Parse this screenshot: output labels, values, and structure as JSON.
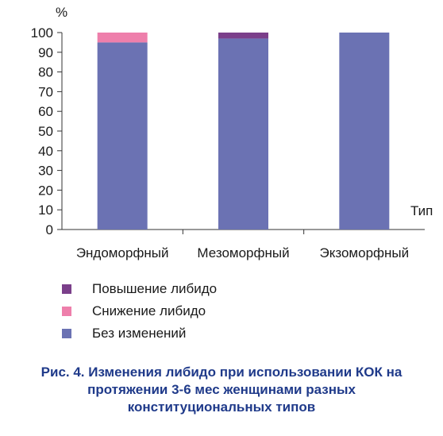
{
  "chart_data": {
    "type": "bar",
    "stacked": true,
    "categories": [
      "Эндоморфный",
      "Мезоморфный",
      "Экзоморфный"
    ],
    "series": [
      {
        "name": "Без изменений",
        "color": "#6b72b3",
        "values": [
          95,
          97,
          100
        ]
      },
      {
        "name": "Снижение либидо",
        "color": "#ee7fab",
        "values": [
          5,
          0,
          0
        ]
      },
      {
        "name": "Повышение либидо",
        "color": "#7b3f8a",
        "values": [
          0,
          3,
          0
        ]
      }
    ],
    "ylabel": "%",
    "xlabel": "Тип",
    "ylim": [
      0,
      100
    ],
    "yticks": [
      0,
      10,
      20,
      30,
      40,
      50,
      60,
      70,
      80,
      90,
      100
    ],
    "grid": false,
    "legend_position": "bottom-left"
  },
  "legend": {
    "items": [
      {
        "label": "Повышение либидо",
        "color": "#7b3f8a"
      },
      {
        "label": "Снижение либидо",
        "color": "#ee7fab"
      },
      {
        "label": "Без изменений",
        "color": "#6b72b3"
      }
    ]
  },
  "caption": {
    "line1": "Рис. 4. Изменения либидо при использовании КОК на",
    "line2": "протяжении 3-6 мес женщинами разных",
    "line3": "конституциональных типов"
  }
}
